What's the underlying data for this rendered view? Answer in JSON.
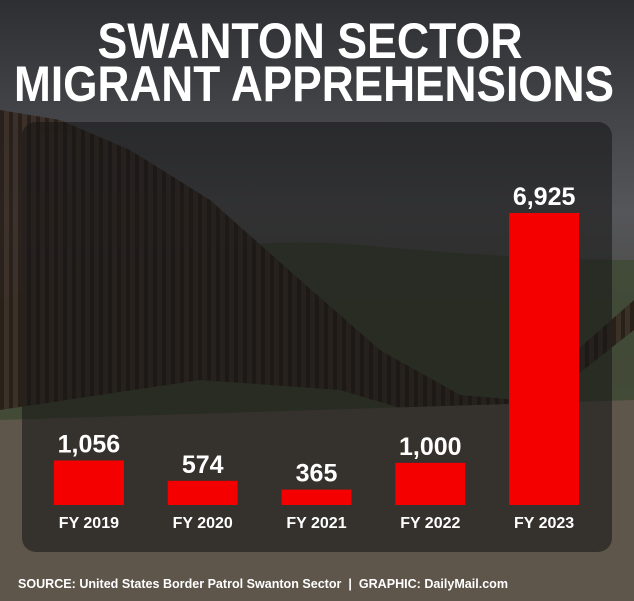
{
  "chart_data": {
    "type": "bar",
    "title": [
      "SWANTON SECTOR",
      "MIGRANT APPREHENSIONS"
    ],
    "categories": [
      "FY 2019",
      "FY 2020",
      "FY 2021",
      "FY 2022",
      "FY 2023"
    ],
    "values": [
      1056,
      574,
      365,
      1000,
      6925
    ],
    "value_labels": [
      "1,056",
      "574",
      "365",
      "1,000",
      "6,925"
    ],
    "color": "#f40000",
    "source": "SOURCE: United States Border Patrol Swanton Sector  |  GRAPHIC: DailyMail.com"
  }
}
